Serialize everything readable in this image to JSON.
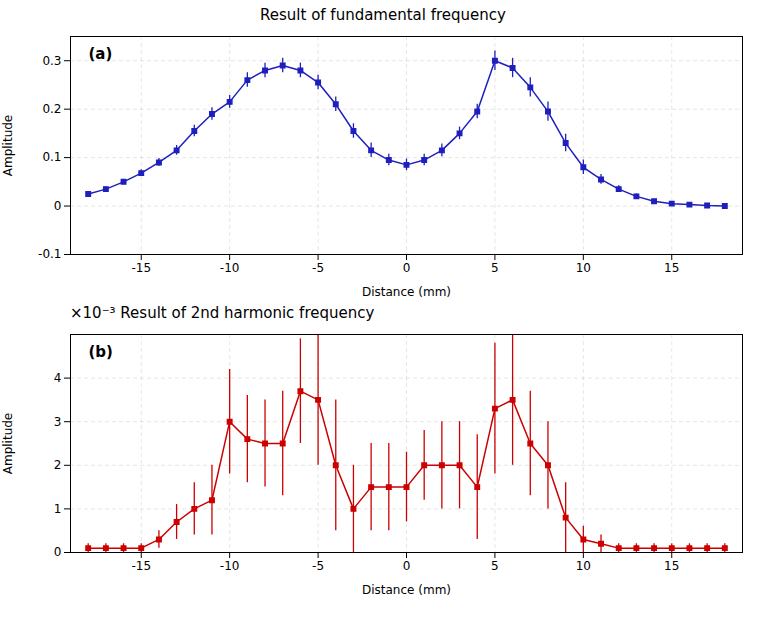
{
  "chart_data": [
    {
      "type": "line",
      "title": "Result of fundamental frequency",
      "annotation": "(a)",
      "x_label": "Distance (mm)",
      "y_label": "Amplitude",
      "x": [
        -18,
        -17,
        -16,
        -15,
        -14,
        -13,
        -12,
        -11,
        -10,
        -9,
        -8,
        -7,
        -6,
        -5,
        -4,
        -3,
        -2,
        -1,
        0,
        1,
        2,
        3,
        4,
        5,
        6,
        7,
        8,
        9,
        10,
        11,
        12,
        13,
        14,
        15,
        16,
        17,
        18
      ],
      "series": [
        {
          "color": "#1f1fbf",
          "marker": "square",
          "line_style": "solid",
          "values": [
            0.025,
            0.035,
            0.05,
            0.068,
            0.09,
            0.115,
            0.155,
            0.19,
            0.215,
            0.26,
            0.28,
            0.29,
            0.28,
            0.255,
            0.21,
            0.155,
            0.115,
            0.095,
            0.085,
            0.095,
            0.115,
            0.15,
            0.195,
            0.3,
            0.285,
            0.245,
            0.195,
            0.13,
            0.08,
            0.055,
            0.035,
            0.02,
            0.01,
            0.005,
            0.003,
            0.001,
            0.0
          ],
          "yerr": [
            0.005,
            0.005,
            0.005,
            0.007,
            0.008,
            0.01,
            0.012,
            0.013,
            0.013,
            0.015,
            0.015,
            0.015,
            0.015,
            0.015,
            0.015,
            0.015,
            0.015,
            0.012,
            0.012,
            0.012,
            0.013,
            0.013,
            0.015,
            0.02,
            0.02,
            0.02,
            0.02,
            0.018,
            0.015,
            0.01,
            0.007,
            0.005,
            0.004,
            0.003,
            0.002,
            0.001,
            0.001
          ]
        }
      ],
      "xlim": [
        -19,
        19
      ],
      "xticks": [
        -15,
        -10,
        -5,
        0,
        5,
        10,
        15
      ],
      "ylim": [
        -0.1,
        0.35
      ],
      "yticks": [
        -0.1,
        0,
        0.1,
        0.2,
        0.3
      ],
      "grid": true
    },
    {
      "type": "line",
      "title": "×10⁻³  Result of 2nd harmonic frequency",
      "annotation": "(b)",
      "x_label": "Distance (mm)",
      "y_label": "Amplitude",
      "x": [
        -18,
        -17,
        -16,
        -15,
        -14,
        -13,
        -12,
        -11,
        -10,
        -9,
        -8,
        -7,
        -6,
        -5,
        -4,
        -3,
        -2,
        -1,
        0,
        1,
        2,
        3,
        4,
        5,
        6,
        7,
        8,
        9,
        10,
        11,
        12,
        13,
        14,
        15,
        16,
        17,
        18
      ],
      "series": [
        {
          "color": "#cc0000",
          "marker": "square",
          "line_style": "solid",
          "values": [
            0.0001,
            0.0001,
            0.0001,
            0.0001,
            0.0003,
            0.0007,
            0.001,
            0.0012,
            0.003,
            0.0026,
            0.0025,
            0.0025,
            0.0037,
            0.0035,
            0.002,
            0.001,
            0.0015,
            0.0015,
            0.0015,
            0.002,
            0.002,
            0.002,
            0.0015,
            0.0033,
            0.0035,
            0.0025,
            0.002,
            0.0008,
            0.0003,
            0.0002,
            0.0001,
            0.0001,
            0.0001,
            0.0001,
            0.0001,
            0.0001,
            0.0001
          ],
          "yerr": [
            0.0001,
            0.0001,
            0.0001,
            0.0001,
            0.0002,
            0.0004,
            0.0006,
            0.0008,
            0.0012,
            0.001,
            0.001,
            0.0012,
            0.0012,
            0.0015,
            0.0015,
            0.001,
            0.001,
            0.001,
            0.0008,
            0.0008,
            0.001,
            0.001,
            0.0012,
            0.0015,
            0.0015,
            0.0012,
            0.001,
            0.0008,
            0.0003,
            0.0002,
            0.0001,
            0.0001,
            0.0001,
            0.0001,
            0.0001,
            0.0001,
            0.0001
          ]
        }
      ],
      "xlim": [
        -19,
        19
      ],
      "xticks": [
        -15,
        -10,
        -5,
        0,
        5,
        10,
        15
      ],
      "ylim": [
        0,
        0.005
      ],
      "yticks": [
        0,
        {
          "value": 0.001,
          "label": "1"
        },
        {
          "value": 0.002,
          "label": "2"
        },
        {
          "value": 0.003,
          "label": "3"
        },
        {
          "value": 0.004,
          "label": "4"
        }
      ],
      "grid": true
    }
  ]
}
